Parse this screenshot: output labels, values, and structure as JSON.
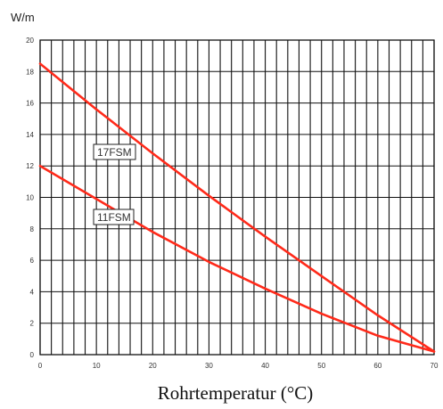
{
  "chart_data": {
    "type": "line",
    "ylabel": "W/m",
    "xlabel": "Rohrtemperatur (°C)",
    "xlim": [
      0,
      70
    ],
    "ylim": [
      0,
      20
    ],
    "x_ticks": [
      0,
      10,
      20,
      30,
      40,
      50,
      60,
      70
    ],
    "y_ticks": [
      0,
      2,
      4,
      6,
      8,
      10,
      12,
      14,
      16,
      18,
      20
    ],
    "x_minor_step": 2,
    "grid": true,
    "line_color": "#ff2a1a",
    "series": [
      {
        "name": "17FSM",
        "x": [
          0,
          10,
          20,
          30,
          40,
          50,
          60,
          70
        ],
        "y": [
          18.5,
          15.6,
          12.8,
          10.1,
          7.5,
          5.0,
          2.5,
          0.2
        ]
      },
      {
        "name": "11FSM",
        "x": [
          0,
          10,
          20,
          30,
          40,
          50,
          60,
          70
        ],
        "y": [
          12.0,
          9.9,
          7.8,
          5.9,
          4.2,
          2.6,
          1.2,
          0.2
        ]
      }
    ]
  }
}
